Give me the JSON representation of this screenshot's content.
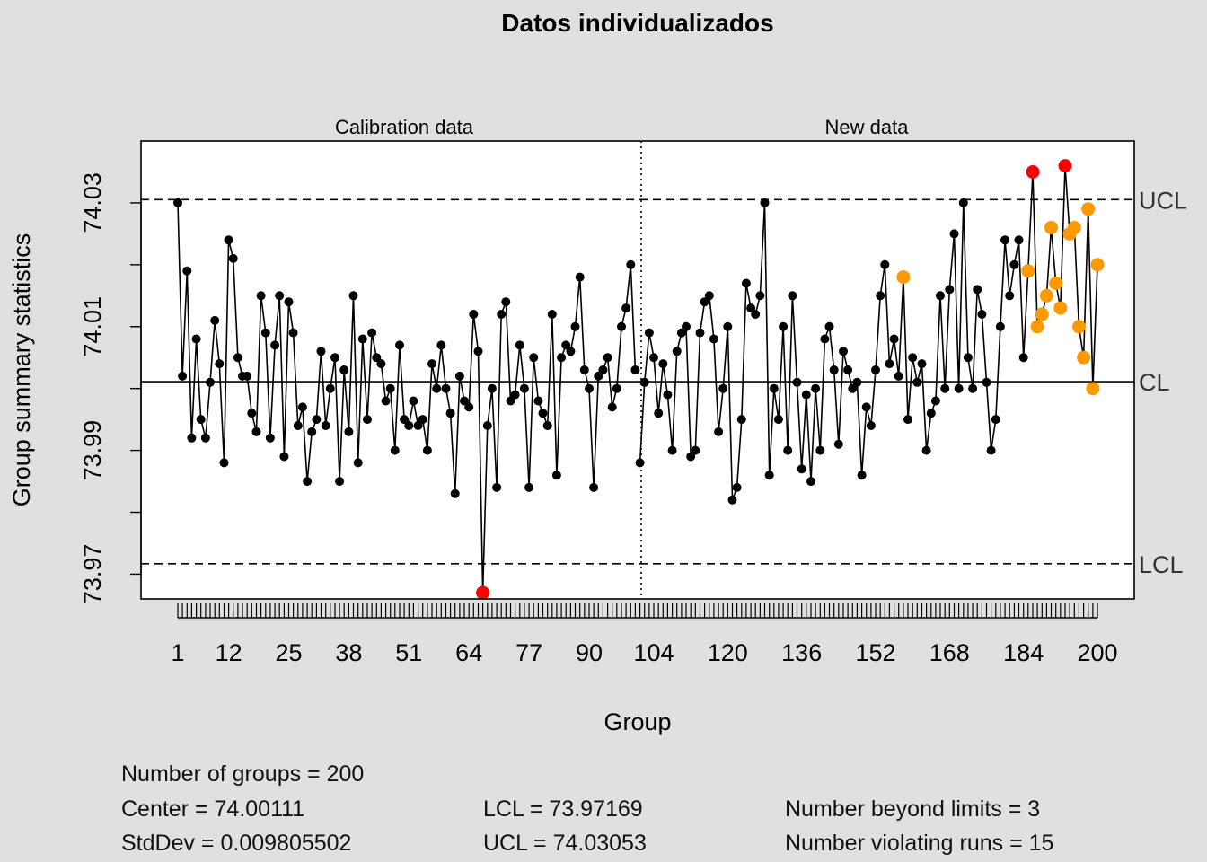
{
  "chart_data": {
    "type": "line",
    "title": "Datos individualizados",
    "xlabel": "Group",
    "ylabel": "Group summary statistics",
    "section_labels": [
      "Calibration data",
      "New data"
    ],
    "split_after_group": 100,
    "xlim": [
      1,
      200
    ],
    "ylim": [
      73.966,
      74.04
    ],
    "x_ticks": [
      1,
      12,
      25,
      38,
      51,
      64,
      77,
      90,
      104,
      120,
      136,
      152,
      168,
      184,
      200
    ],
    "y_ticks": [
      73.97,
      73.98,
      73.99,
      74.0,
      74.01,
      74.02,
      74.03
    ],
    "y_tick_labels": [
      "73.97",
      "",
      "73.99",
      "",
      "74.01",
      "",
      "74.03"
    ],
    "center": 74.00111,
    "lcl": 73.97169,
    "ucl": 74.03053,
    "limit_labels": {
      "ucl": "UCL",
      "cl": "CL",
      "lcl": "LCL"
    },
    "colors": {
      "normal": "#000000",
      "beyond_limits": "#ff0000",
      "violating_runs": "#ff9900",
      "background": "#e0e0e0",
      "panel": "#ffffff"
    },
    "beyond_limits_groups": [
      67,
      186,
      193
    ],
    "violating_runs_groups": [
      158,
      185,
      187,
      188,
      189,
      190,
      191,
      192,
      194,
      195,
      196,
      197,
      198,
      199,
      200
    ],
    "values": [
      74.03,
      74.002,
      74.019,
      73.992,
      74.008,
      73.995,
      73.992,
      74.001,
      74.011,
      74.004,
      73.988,
      74.024,
      74.021,
      74.005,
      74.002,
      74.002,
      73.996,
      73.993,
      74.015,
      74.009,
      73.992,
      74.007,
      74.015,
      73.989,
      74.014,
      74.009,
      73.994,
      73.997,
      73.985,
      73.993,
      73.995,
      74.006,
      73.994,
      74.0,
      74.005,
      73.985,
      74.003,
      73.993,
      74.015,
      73.988,
      74.008,
      73.995,
      74.009,
      74.005,
      74.004,
      73.998,
      74.0,
      73.99,
      74.007,
      73.995,
      73.994,
      73.998,
      73.994,
      73.995,
      73.99,
      74.004,
      74.0,
      74.007,
      74.0,
      73.996,
      73.983,
      74.002,
      73.998,
      73.997,
      74.012,
      74.006,
      73.967,
      73.994,
      74.0,
      73.984,
      74.012,
      74.014,
      73.998,
      73.999,
      74.007,
      74.0,
      73.984,
      74.005,
      73.998,
      73.996,
      73.994,
      74.012,
      73.986,
      74.005,
      74.007,
      74.006,
      74.01,
      74.018,
      74.003,
      74.0,
      73.984,
      74.002,
      74.003,
      74.005,
      73.997,
      74.0,
      74.01,
      74.013,
      74.02,
      74.003,
      73.988,
      74.001,
      74.009,
      74.005,
      73.996,
      74.004,
      73.999,
      73.99,
      74.006,
      74.009,
      74.01,
      73.989,
      73.99,
      74.009,
      74.014,
      74.015,
      74.008,
      73.993,
      74.0,
      74.01,
      73.982,
      73.984,
      73.995,
      74.017,
      74.013,
      74.012,
      74.015,
      74.03,
      73.986,
      74.0,
      73.995,
      74.01,
      73.99,
      74.015,
      74.001,
      73.987,
      73.999,
      73.985,
      74.0,
      73.99,
      74.008,
      74.01,
      74.003,
      73.991,
      74.006,
      74.003,
      74.0,
      74.001,
      73.986,
      73.997,
      73.994,
      74.003,
      74.015,
      74.02,
      74.004,
      74.008,
      74.002,
      74.018,
      73.995,
      74.005,
      74.001,
      74.004,
      73.99,
      73.996,
      73.998,
      74.015,
      74.0,
      74.016,
      74.025,
      74.0,
      74.03,
      74.005,
      74.0,
      74.016,
      74.012,
      74.001,
      73.99,
      73.995,
      74.01,
      74.024,
      74.015,
      74.02,
      74.024,
      74.005,
      74.019,
      74.035,
      74.01,
      74.012,
      74.015,
      74.026,
      74.017,
      74.013,
      74.036,
      74.025,
      74.026,
      74.01,
      74.005,
      74.029,
      74.0,
      74.02
    ]
  },
  "stats": {
    "groups": "Number of groups = 200",
    "center": "Center = 74.00111",
    "stddev": "StdDev = 0.009805502",
    "lcl": "LCL = 73.97169",
    "ucl": "UCL = 74.03053",
    "beyond": "Number beyond limits = 3",
    "runs": "Number violating runs = 15"
  }
}
